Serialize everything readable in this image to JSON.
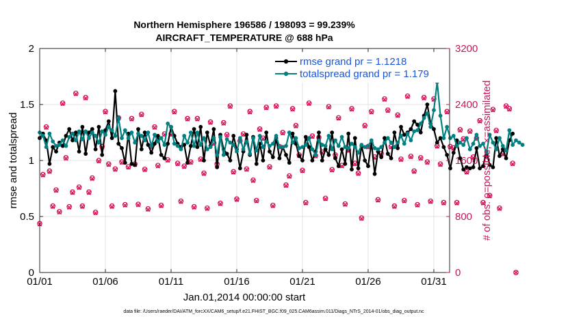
{
  "chart_data": {
    "type": "line",
    "title_line1": "Northern Hemisphere 196586 / 198093 = 99.239%",
    "title_line2": "AIRCRAFT_TEMPERATURE @ 688 hPa",
    "xlabel": "Jan.01,2014 00:00:00 start",
    "ylabel_left": "rmse and totalspread",
    "ylabel_right": "# of obs: o=possible; ×=assimilated",
    "footnote": "data file: /Users/raeder/DAI/ATM_forcXX/CAM6_setup/f.e21.FHIST_BGC.f09_025.CAM6assim.011/Diags_NTrS_2014-01/obs_diag_output.nc",
    "x_ticks": [
      "01/01",
      "01/06",
      "01/11",
      "01/16",
      "01/21",
      "01/26",
      "01/31"
    ],
    "y_left_ticks": [
      "0",
      "0.5",
      "1",
      "1.5",
      "2"
    ],
    "y_right_ticks": [
      "0",
      "800",
      "1600",
      "2400",
      "3200"
    ],
    "ylim_left": [
      0,
      2
    ],
    "ylim_right": [
      0,
      3200
    ],
    "xlim_days": [
      1,
      32.2
    ],
    "tick_days": [
      1,
      6,
      11,
      16,
      21,
      26,
      31
    ],
    "colors": {
      "rmse": "#000000",
      "spread": "#008080",
      "obs": "#d6125a",
      "legend_text": "#1a56db",
      "right_axis": "#c2185b"
    },
    "series": [
      {
        "name": "rmse",
        "legend": "rmse grand pr = 1.1218",
        "values": [
          1.2,
          1.24,
          1.18,
          0.97,
          1.12,
          1.08,
          1.16,
          1.13,
          1.22,
          1.28,
          1.18,
          1.25,
          1.08,
          1.3,
          1.06,
          1.25,
          1.28,
          1.1,
          1.3,
          1.05,
          1.27,
          1.35,
          1.2,
          1.62,
          1.15,
          1.11,
          0.98,
          1.24,
          0.97,
          0.96,
          1.28,
          1.1,
          1.25,
          1.14,
          1.07,
          1.15,
          1.22,
          1.05,
          1.02,
          1.15,
          1.3,
          1.22,
          1.15,
          1.12,
          1.14,
          0.98,
          1.13,
          1.28,
          1.12,
          1.3,
          1.0,
          1.25,
          1.13,
          1.28,
          0.94,
          1.23,
          1.1,
          1.06,
          1.0,
          1.22,
          1.1,
          0.93,
          1.08,
          1.23,
          1.05,
          1.21,
          0.97,
          1.15,
          1.0,
          1.25,
          1.08,
          1.03,
          1.2,
          1.02,
          1.12,
          1.05,
          0.98,
          1.24,
          1.15,
          1.04,
          1.0,
          1.21,
          1.12,
          1.0,
          1.08,
          1.25,
          1.0,
          1.1,
          1.05,
          1.25,
          1.02,
          0.95,
          1.1,
          0.97,
          1.24,
          0.92,
          1.2,
          0.93,
          1.13,
          1.0,
          0.95,
          1.16,
          0.88,
          1.08,
          1.03,
          1.2,
          1.06,
          1.02,
          1.25,
          1.11,
          1.3,
          1.23,
          1.25,
          1.28,
          1.35,
          1.32,
          1.25,
          1.4,
          1.5,
          1.33,
          1.28,
          1.16,
          1.2,
          1.12,
          1.05,
          0.93,
          1.07,
          1.18,
          1.02,
          0.92,
          0.94,
          0.93,
          0.94,
          1.11,
          0.93,
          0.95,
          1.08,
          0.96,
          0.94,
          1.2,
          1.04,
          1.1,
          1.02,
          1.18,
          1.24
        ]
      },
      {
        "name": "totalspread",
        "legend": "totalspread grand pr = 1.179",
        "values": [
          1.25,
          1.22,
          1.12,
          1.24,
          1.17,
          1.13,
          1.14,
          1.18,
          1.13,
          1.21,
          1.24,
          1.18,
          1.26,
          1.19,
          1.26,
          1.2,
          1.25,
          1.22,
          1.16,
          1.26,
          1.23,
          1.3,
          1.27,
          1.22,
          1.38,
          1.2,
          1.27,
          1.2,
          1.25,
          1.16,
          1.24,
          1.22,
          1.18,
          1.25,
          1.13,
          1.23,
          1.17,
          1.2,
          1.14,
          1.33,
          1.3,
          1.15,
          1.13,
          1.1,
          1.22,
          1.16,
          1.25,
          1.13,
          1.25,
          1.14,
          1.2,
          1.1,
          1.12,
          1.2,
          1.05,
          1.21,
          1.05,
          1.19,
          1.16,
          1.14,
          1.08,
          1.2,
          1.1,
          1.17,
          1.06,
          1.2,
          1.09,
          1.22,
          1.12,
          1.17,
          1.13,
          1.15,
          1.22,
          1.12,
          1.12,
          1.13,
          1.25,
          1.16,
          1.2,
          1.11,
          1.12,
          1.14,
          1.2,
          1.1,
          1.05,
          1.18,
          1.14,
          1.13,
          1.22,
          1.1,
          1.18,
          1.13,
          1.21,
          1.12,
          1.11,
          1.15,
          1.12,
          1.07,
          1.14,
          1.12,
          1.13,
          1.18,
          1.11,
          1.1,
          1.12,
          1.16,
          1.2,
          1.16,
          1.12,
          1.16,
          1.22,
          1.15,
          1.24,
          1.18,
          1.26,
          1.27,
          1.33,
          1.38,
          1.42,
          1.3,
          1.45,
          1.7,
          1.4,
          1.2,
          1.3,
          1.2,
          1.22,
          1.13,
          1.16,
          1.14,
          1.2,
          1.1,
          1.15,
          1.23,
          1.13,
          1.15,
          1.07,
          1.23,
          1.16,
          1.1,
          1.2,
          1.13,
          1.09,
          1.27,
          1.14,
          1.18,
          1.16,
          1.14
        ]
      },
      {
        "name": "obs_possible",
        "values": [
          700,
          1400,
          2080,
          1450,
          950,
          1180,
          870,
          2420,
          1640,
          940,
          1150,
          2560,
          1220,
          950,
          2500,
          1150,
          1350,
          860,
          1600,
          1800,
          2300,
          1550,
          950,
          1480,
          2210,
          1580,
          970,
          1510,
          2200,
          1550,
          975,
          2260,
          1475,
          910,
          1800,
          2080,
          1530,
          960,
          1980,
          1610,
          1980,
          2300,
          1560,
          1020,
          1520,
          2200,
          1580,
          940,
          2200,
          1620,
          1420,
          920,
          2150,
          1850,
          1550,
          990,
          2140,
          1970,
          2380,
          1440,
          1050,
          1880,
          1980,
          1480,
          2300,
          1320,
          1030,
          2050,
          1920,
          2360,
          1510,
          960,
          2380,
          1800,
          2000,
          1250,
          1380,
          2340,
          2100,
          1680,
          1460,
          1000,
          2420,
          1950,
          1670,
          1930,
          1720,
          1060,
          2370,
          1470,
          1680,
          2210,
          1530,
          980,
          1750,
          2340,
          1560,
          1420,
          780,
          2100,
          1800,
          2300,
          1650,
          1040,
          1700,
          2480,
          2320,
          1800,
          950,
          2250,
          1620,
          1030,
          2520,
          1660,
          1450,
          970,
          1640,
          2500,
          1580,
          1020,
          2480,
          1810,
          1550,
          1000,
          2300,
          1800,
          1780,
          1000,
          2040,
          1910,
          1440,
          2020,
          1650,
          1920,
          2170,
          1000,
          1660,
          1100,
          2330,
          2030,
          920,
          1700,
          2380,
          2340,
          1560,
          0
        ]
      },
      {
        "name": "obs_assimilated",
        "values": [
          690,
          1390,
          2070,
          1440,
          940,
          1170,
          860,
          2410,
          1630,
          930,
          1140,
          2550,
          1210,
          940,
          2490,
          1140,
          1340,
          850,
          1590,
          1790,
          2290,
          1540,
          940,
          1470,
          2200,
          1570,
          960,
          1500,
          2190,
          1540,
          965,
          2250,
          1465,
          900,
          1790,
          2070,
          1520,
          950,
          1970,
          1600,
          1970,
          2290,
          1550,
          1010,
          1510,
          2190,
          1570,
          930,
          2190,
          1610,
          1410,
          910,
          2140,
          1840,
          1540,
          980,
          2130,
          1960,
          2370,
          1430,
          1040,
          1870,
          1970,
          1470,
          2290,
          1310,
          1020,
          2040,
          1910,
          2350,
          1500,
          950,
          2370,
          1790,
          1990,
          1240,
          1370,
          2330,
          2090,
          1670,
          1450,
          990,
          2410,
          1940,
          1660,
          1920,
          1710,
          1050,
          2360,
          1460,
          1670,
          2200,
          1520,
          970,
          1740,
          2330,
          1550,
          1410,
          770,
          2090,
          1790,
          2290,
          1640,
          1030,
          1690,
          2470,
          2310,
          1790,
          940,
          2240,
          1610,
          1020,
          2510,
          1650,
          1440,
          960,
          1630,
          2490,
          1570,
          1010,
          2470,
          1800,
          1540,
          990,
          2290,
          1790,
          1770,
          990,
          2030,
          1900,
          1430,
          2010,
          1640,
          1910,
          2160,
          990,
          1650,
          1090,
          2320,
          2020,
          910,
          1690,
          2370,
          2330,
          1550,
          0
        ]
      }
    ]
  }
}
